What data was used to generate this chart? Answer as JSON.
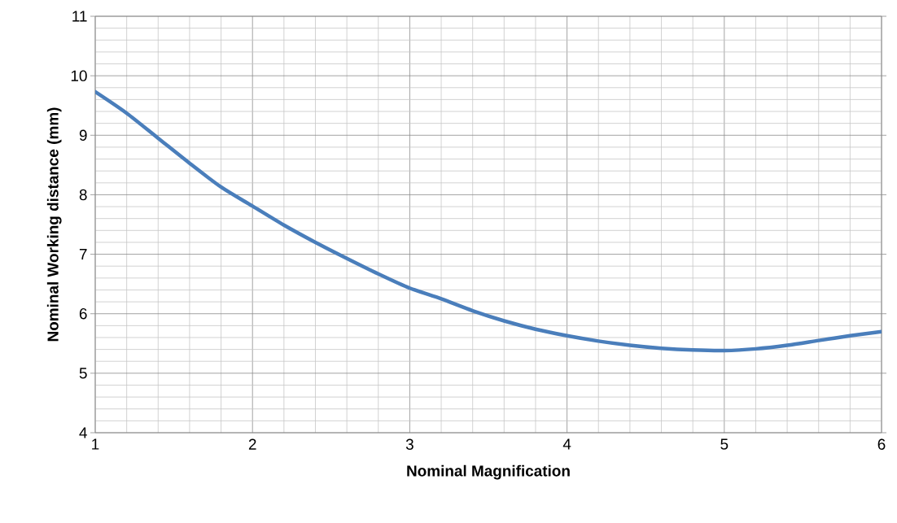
{
  "chart_data": {
    "type": "line",
    "xlabel": "Nominal Magnification",
    "ylabel": "Nominal Working distance (mm)",
    "x": [
      1,
      1.2,
      1.4,
      1.6,
      1.8,
      2,
      2.2,
      2.4,
      2.6,
      2.8,
      3,
      3.2,
      3.4,
      3.6,
      3.8,
      4,
      4.2,
      4.4,
      4.6,
      4.8,
      5,
      5.2,
      5.4,
      5.6,
      5.8,
      6
    ],
    "series": [
      {
        "color": "#4a7ebb",
        "values": [
          9.73,
          9.37,
          8.95,
          8.53,
          8.13,
          7.81,
          7.49,
          7.2,
          6.93,
          6.67,
          6.43,
          6.25,
          6.05,
          5.88,
          5.74,
          5.63,
          5.54,
          5.47,
          5.42,
          5.39,
          5.38,
          5.41,
          5.47,
          5.55,
          5.63,
          5.7
        ]
      }
    ],
    "xlim": [
      1,
      6
    ],
    "ylim": [
      4,
      11
    ],
    "xticks": [
      1,
      2,
      3,
      4,
      5,
      6
    ],
    "yticks": [
      4,
      5,
      6,
      7,
      8,
      9,
      10,
      11
    ],
    "grid": true,
    "marker": "none",
    "line_style": "solid"
  }
}
